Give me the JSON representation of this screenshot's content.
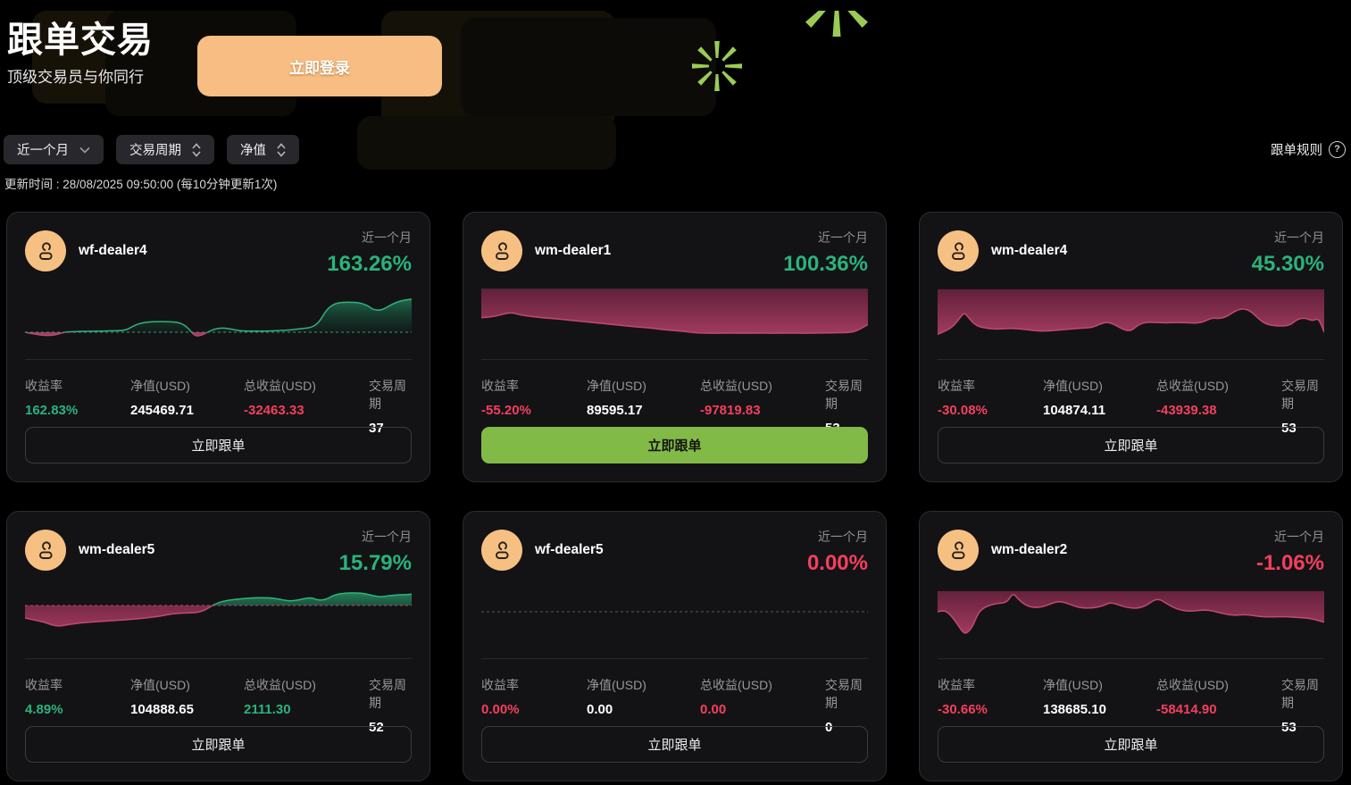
{
  "header": {
    "title": "跟单交易",
    "subtitle": "顶级交易员与你同行",
    "login_label": "立即登录"
  },
  "toolbar": {
    "filters": [
      {
        "label": "近一个月",
        "icon": "chevron-down-icon"
      },
      {
        "label": "交易周期",
        "icon": "sort-icon"
      },
      {
        "label": "净值",
        "icon": "sort-icon"
      }
    ],
    "rules_label": "跟单规则",
    "rules_icon": "question-circle-icon"
  },
  "update_time": "更新时间 : 28/08/2025 09:50:00 (每10分钟更新1次)",
  "period_label": "近一个月",
  "follow_label": "立即跟单",
  "stat_labels": [
    "收益率",
    "净值(USD)",
    "总收益(USD)",
    "交易周期"
  ],
  "colors": {
    "green": "#2ab37c",
    "red": "#f43f5e",
    "green_line": "#31b27d",
    "crimson_line": "#c14a6e",
    "accent_orange": "#f7bd82",
    "button_green": "#82ba47",
    "star_green": "#9bcb55",
    "card_bg": "#131316"
  },
  "cards": [
    {
      "name": "wf-dealer4",
      "pct": "163.26%",
      "pct_class": "green",
      "yield": "162.83%",
      "yield_class": "green",
      "net": "245469.71",
      "net_class": "white",
      "total": "-32463.33",
      "total_class": "red",
      "period": "37",
      "period_class": "white",
      "button_variant": "ghost",
      "chart": {
        "type": "area",
        "baseline": 0.88,
        "dash": "#3f9f74",
        "points": [
          [
            0,
            0.88
          ],
          [
            2,
            0.91
          ],
          [
            5,
            0.945
          ],
          [
            8,
            0.935
          ],
          [
            10,
            0.875
          ],
          [
            14,
            0.865
          ],
          [
            18,
            0.86
          ],
          [
            22,
            0.855
          ],
          [
            26,
            0.845
          ],
          [
            28,
            0.76
          ],
          [
            30,
            0.7
          ],
          [
            33,
            0.675
          ],
          [
            37,
            0.675
          ],
          [
            40,
            0.69
          ],
          [
            42,
            0.78
          ],
          [
            44,
            0.965
          ],
          [
            46,
            0.93
          ],
          [
            48,
            0.845
          ],
          [
            50,
            0.8
          ],
          [
            52,
            0.8
          ],
          [
            54,
            0.83
          ],
          [
            56,
            0.855
          ],
          [
            60,
            0.86
          ],
          [
            64,
            0.855
          ],
          [
            68,
            0.84
          ],
          [
            71,
            0.815
          ],
          [
            74,
            0.79
          ],
          [
            76,
            0.7
          ],
          [
            78,
            0.44
          ],
          [
            80,
            0.33
          ],
          [
            82,
            0.3
          ],
          [
            85,
            0.3
          ],
          [
            87,
            0.315
          ],
          [
            89,
            0.38
          ],
          [
            90,
            0.44
          ],
          [
            92,
            0.46
          ],
          [
            94,
            0.38
          ],
          [
            96,
            0.3
          ],
          [
            98,
            0.26
          ],
          [
            100,
            0.24
          ]
        ]
      }
    },
    {
      "name": "wm-dealer1",
      "pct": "100.36%",
      "pct_class": "green",
      "yield": "-55.20%",
      "yield_class": "red",
      "net": "89595.17",
      "net_class": "white",
      "total": "-97819.83",
      "total_class": "red",
      "period": "53",
      "period_class": "white",
      "button_variant": "primary",
      "chart": {
        "type": "area",
        "baseline": 0.04,
        "dash": null,
        "points": [
          [
            0,
            0.6
          ],
          [
            3,
            0.585
          ],
          [
            6,
            0.52
          ],
          [
            8,
            0.5
          ],
          [
            10,
            0.545
          ],
          [
            13,
            0.575
          ],
          [
            16,
            0.6
          ],
          [
            20,
            0.625
          ],
          [
            24,
            0.655
          ],
          [
            28,
            0.685
          ],
          [
            32,
            0.715
          ],
          [
            36,
            0.745
          ],
          [
            40,
            0.775
          ],
          [
            44,
            0.8
          ],
          [
            47,
            0.83
          ],
          [
            50,
            0.845
          ],
          [
            53,
            0.87
          ],
          [
            56,
            0.895
          ],
          [
            60,
            0.9
          ],
          [
            64,
            0.895
          ],
          [
            68,
            0.9
          ],
          [
            72,
            0.895
          ],
          [
            76,
            0.9
          ],
          [
            80,
            0.895
          ],
          [
            84,
            0.9
          ],
          [
            88,
            0.895
          ],
          [
            92,
            0.89
          ],
          [
            95,
            0.885
          ],
          [
            97,
            0.86
          ],
          [
            100,
            0.73
          ]
        ]
      }
    },
    {
      "name": "wm-dealer4",
      "pct": "45.30%",
      "pct_class": "green",
      "yield": "-30.08%",
      "yield_class": "red",
      "net": "104874.11",
      "net_class": "white",
      "total": "-43939.38",
      "total_class": "red",
      "period": "53",
      "period_class": "white",
      "button_variant": "ghost",
      "chart": {
        "type": "area",
        "baseline": 0.05,
        "dash": null,
        "points": [
          [
            0,
            0.92
          ],
          [
            2,
            0.86
          ],
          [
            4,
            0.77
          ],
          [
            6,
            0.58
          ],
          [
            7,
            0.5
          ],
          [
            8,
            0.6
          ],
          [
            10,
            0.76
          ],
          [
            13,
            0.81
          ],
          [
            16,
            0.82
          ],
          [
            19,
            0.8
          ],
          [
            22,
            0.82
          ],
          [
            25,
            0.85
          ],
          [
            28,
            0.86
          ],
          [
            31,
            0.84
          ],
          [
            34,
            0.82
          ],
          [
            37,
            0.8
          ],
          [
            40,
            0.79
          ],
          [
            42,
            0.72
          ],
          [
            44,
            0.68
          ],
          [
            46,
            0.74
          ],
          [
            48,
            0.83
          ],
          [
            50,
            0.86
          ],
          [
            52,
            0.73
          ],
          [
            54,
            0.685
          ],
          [
            56,
            0.69
          ],
          [
            59,
            0.7
          ],
          [
            62,
            0.69
          ],
          [
            65,
            0.7
          ],
          [
            68,
            0.705
          ],
          [
            71,
            0.6
          ],
          [
            73,
            0.62
          ],
          [
            75,
            0.57
          ],
          [
            77,
            0.465
          ],
          [
            79,
            0.42
          ],
          [
            81,
            0.47
          ],
          [
            83,
            0.62
          ],
          [
            85,
            0.73
          ],
          [
            88,
            0.76
          ],
          [
            91,
            0.755
          ],
          [
            93,
            0.63
          ],
          [
            95,
            0.6
          ],
          [
            97,
            0.665
          ],
          [
            98.5,
            0.6
          ],
          [
            100,
            0.88
          ]
        ]
      }
    },
    {
      "name": "wm-dealer5",
      "pct": "15.79%",
      "pct_class": "green",
      "yield": "4.89%",
      "yield_class": "green",
      "net": "104888.65",
      "net_class": "white",
      "total": "2111.30",
      "total_class": "green",
      "period": "52",
      "period_class": "white",
      "button_variant": "ghost",
      "chart": {
        "type": "area",
        "baseline": 0.38,
        "dash": "#c2486b",
        "points": [
          [
            0,
            0.62
          ],
          [
            3,
            0.67
          ],
          [
            5,
            0.7
          ],
          [
            7,
            0.76
          ],
          [
            9,
            0.78
          ],
          [
            11,
            0.75
          ],
          [
            14,
            0.72
          ],
          [
            17,
            0.7
          ],
          [
            20,
            0.685
          ],
          [
            24,
            0.665
          ],
          [
            28,
            0.645
          ],
          [
            32,
            0.615
          ],
          [
            35,
            0.585
          ],
          [
            38,
            0.54
          ],
          [
            41,
            0.525
          ],
          [
            44,
            0.52
          ],
          [
            46,
            0.49
          ],
          [
            48,
            0.4
          ],
          [
            50,
            0.32
          ],
          [
            52,
            0.285
          ],
          [
            55,
            0.255
          ],
          [
            58,
            0.235
          ],
          [
            61,
            0.225
          ],
          [
            64,
            0.235
          ],
          [
            66,
            0.26
          ],
          [
            68,
            0.29
          ],
          [
            70,
            0.285
          ],
          [
            72,
            0.25
          ],
          [
            74,
            0.225
          ],
          [
            76,
            0.28
          ],
          [
            78,
            0.26
          ],
          [
            80,
            0.17
          ],
          [
            83,
            0.135
          ],
          [
            86,
            0.135
          ],
          [
            88,
            0.15
          ],
          [
            90,
            0.19
          ],
          [
            92,
            0.215
          ],
          [
            94,
            0.19
          ],
          [
            96,
            0.175
          ],
          [
            98,
            0.17
          ],
          [
            100,
            0.16
          ]
        ]
      }
    },
    {
      "name": "wf-dealer5",
      "pct": "0.00%",
      "pct_class": "red",
      "yield": "0.00%",
      "yield_class": "red",
      "net": "0.00",
      "net_class": "white",
      "total": "0.00",
      "total_class": "red",
      "period": "0",
      "period_class": "white",
      "button_variant": "ghost",
      "chart": {
        "type": "area",
        "baseline": 0.5,
        "dash": "#5c5c5c",
        "points": []
      }
    },
    {
      "name": "wm-dealer2",
      "pct": "-1.06%",
      "pct_class": "red",
      "yield": "-30.66%",
      "yield_class": "red",
      "net": "138685.10",
      "net_class": "white",
      "total": "-58414.90",
      "total_class": "red",
      "period": "53",
      "period_class": "white",
      "button_variant": "ghost",
      "chart": {
        "type": "area",
        "baseline": 0.1,
        "dash": null,
        "points": [
          [
            0,
            0.5
          ],
          [
            1.5,
            0.47
          ],
          [
            3,
            0.53
          ],
          [
            5,
            0.72
          ],
          [
            6.5,
            0.9
          ],
          [
            7.5,
            0.92
          ],
          [
            9,
            0.8
          ],
          [
            10.5,
            0.52
          ],
          [
            12,
            0.42
          ],
          [
            14,
            0.36
          ],
          [
            16,
            0.335
          ],
          [
            18,
            0.32
          ],
          [
            19.5,
            0.13
          ],
          [
            21,
            0.27
          ],
          [
            23,
            0.385
          ],
          [
            25,
            0.42
          ],
          [
            27,
            0.41
          ],
          [
            29,
            0.355
          ],
          [
            31,
            0.3
          ],
          [
            33,
            0.32
          ],
          [
            35,
            0.38
          ],
          [
            37,
            0.425
          ],
          [
            39,
            0.43
          ],
          [
            41,
            0.42
          ],
          [
            43,
            0.38
          ],
          [
            44.5,
            0.325
          ],
          [
            46,
            0.345
          ],
          [
            48,
            0.4
          ],
          [
            50,
            0.43
          ],
          [
            52,
            0.43
          ],
          [
            54,
            0.38
          ],
          [
            56,
            0.27
          ],
          [
            57.5,
            0.26
          ],
          [
            59,
            0.33
          ],
          [
            61,
            0.42
          ],
          [
            63,
            0.47
          ],
          [
            65,
            0.49
          ],
          [
            67,
            0.48
          ],
          [
            69,
            0.465
          ],
          [
            71,
            0.48
          ],
          [
            73,
            0.52
          ],
          [
            75,
            0.555
          ],
          [
            77,
            0.57
          ],
          [
            79,
            0.555
          ],
          [
            81,
            0.565
          ],
          [
            83,
            0.59
          ],
          [
            85,
            0.6
          ],
          [
            87,
            0.6
          ],
          [
            89,
            0.595
          ],
          [
            91,
            0.6
          ],
          [
            93,
            0.61
          ],
          [
            95,
            0.62
          ],
          [
            97,
            0.64
          ],
          [
            100,
            0.7
          ]
        ]
      }
    }
  ]
}
